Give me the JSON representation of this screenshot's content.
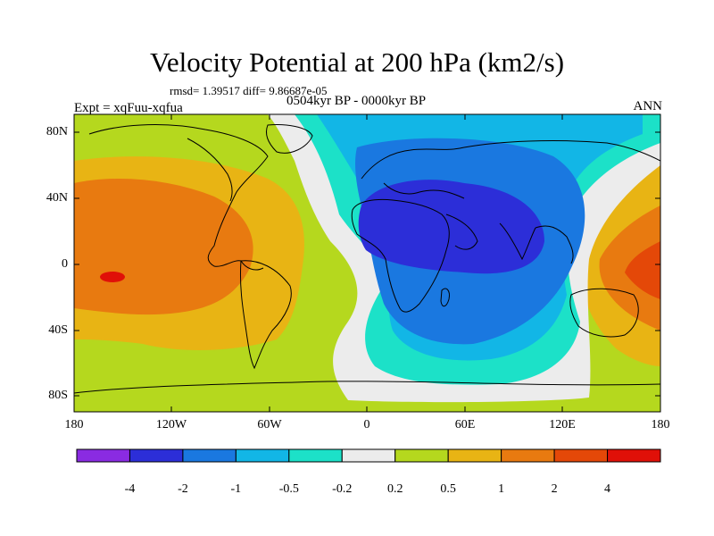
{
  "title": "Velocity Potential at 200 hPa (km2/s)",
  "stats": "rmsd= 1.39517 diff= 9.86687e-05",
  "experiment": "Expt = xqFuu-xqfua",
  "period": "0504kyr BP - 0000kyr BP",
  "season": "ANN",
  "lat_labels": [
    "80N",
    "40N",
    "0",
    "40S",
    "80S"
  ],
  "lon_labels": [
    "180",
    "120W",
    "60W",
    "0",
    "60E",
    "120E",
    "180"
  ],
  "colorbar": {
    "labels": [
      "-4",
      "-2",
      "-1",
      "-0.5",
      "-0.2",
      "0.2",
      "0.5",
      "1",
      "2",
      "4"
    ],
    "colors": [
      "#8a2be2",
      "#2c2ed8",
      "#1a78e0",
      "#12b6e6",
      "#1ce1c8",
      "#ececec",
      "#b5d81e",
      "#e8b414",
      "#e87a10",
      "#e44808",
      "#e01008"
    ]
  }
}
